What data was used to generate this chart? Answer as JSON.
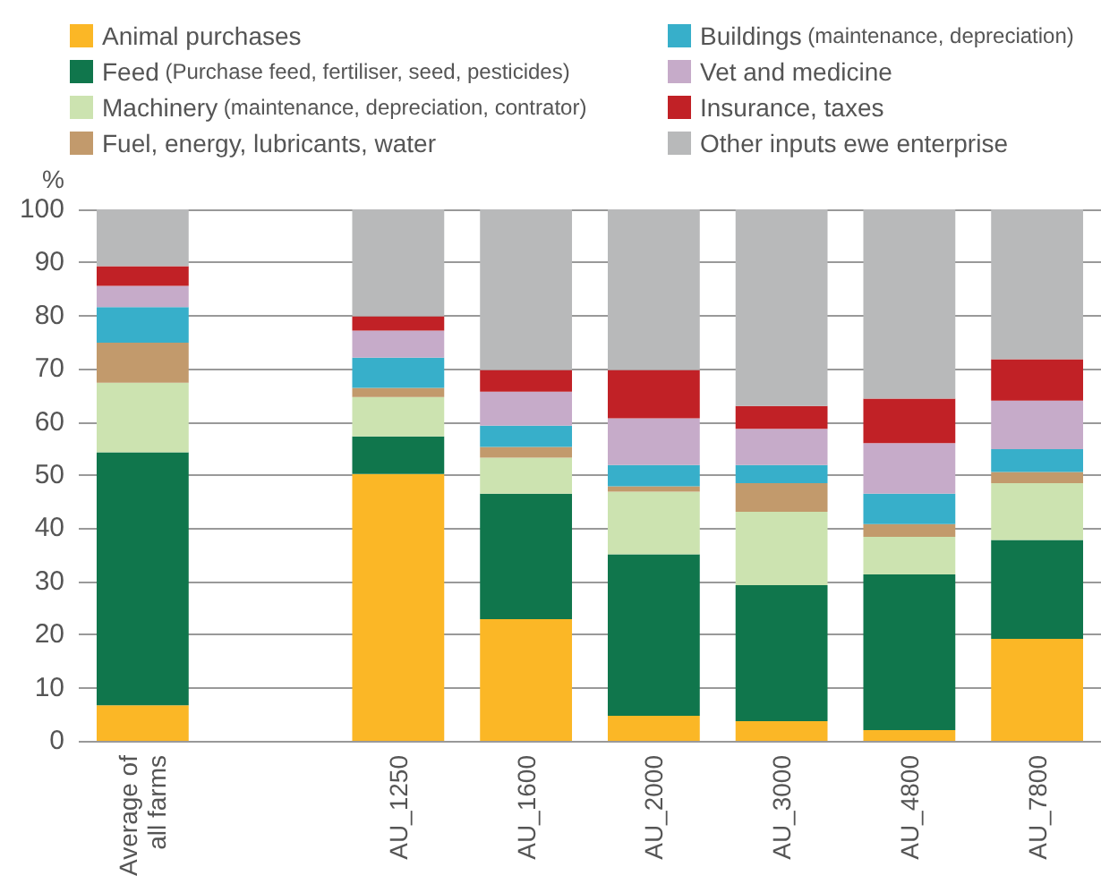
{
  "chart_data": {
    "type": "bar",
    "stacked": true,
    "ylabel": "%",
    "categories": [
      "Average of\nall farms",
      null,
      "AU_1250",
      "AU_1600",
      "AU_2000",
      "AU_3000",
      "AU_4800",
      "AU_7800"
    ],
    "series": [
      {
        "name": "Animal purchases",
        "color": "#fbb726",
        "values": [
          6.7,
          null,
          50.2,
          22.9,
          4.7,
          3.7,
          2.0,
          19.2
        ]
      },
      {
        "name": "Feed (Purchase feed, fertiliser, seed, pesticides)",
        "color": "#10764c",
        "values": [
          47.6,
          null,
          7.1,
          23.6,
          30.4,
          25.6,
          29.3,
          18.6
        ]
      },
      {
        "name": "Machinery (maintenance, depreciation, contrator)",
        "color": "#cce3b0",
        "values": [
          13.1,
          null,
          7.4,
          6.8,
          11.8,
          13.8,
          7.1,
          10.7
        ]
      },
      {
        "name": "Fuel, energy, lubricants, water",
        "color": "#c29a6c",
        "values": [
          7.5,
          null,
          1.7,
          2.0,
          1.0,
          5.4,
          2.4,
          2.1
        ]
      },
      {
        "name": "Buildings (maintenance, depreciation)",
        "color": "#37afca",
        "values": [
          6.7,
          null,
          5.7,
          4.0,
          4.0,
          3.4,
          5.7,
          4.3
        ]
      },
      {
        "name": "Vet and medicine",
        "color": "#c6abc9",
        "values": [
          4.0,
          null,
          5.1,
          6.4,
          8.8,
          6.8,
          9.5,
          9.1
        ]
      },
      {
        "name": "Insurance, taxes",
        "color": "#c12126",
        "values": [
          3.7,
          null,
          2.7,
          4.1,
          9.1,
          4.3,
          8.4,
          7.8
        ]
      },
      {
        "name": "Other inputs ewe enterprise",
        "color": "#b8b9ba",
        "values": [
          10.7,
          null,
          20.1,
          30.2,
          30.2,
          37.0,
          35.6,
          28.2
        ]
      }
    ],
    "ylim": [
      0,
      100
    ],
    "yticks": [
      0,
      10,
      20,
      30,
      40,
      50,
      60,
      70,
      80,
      90,
      100
    ],
    "grid": "y",
    "legend": "top"
  }
}
